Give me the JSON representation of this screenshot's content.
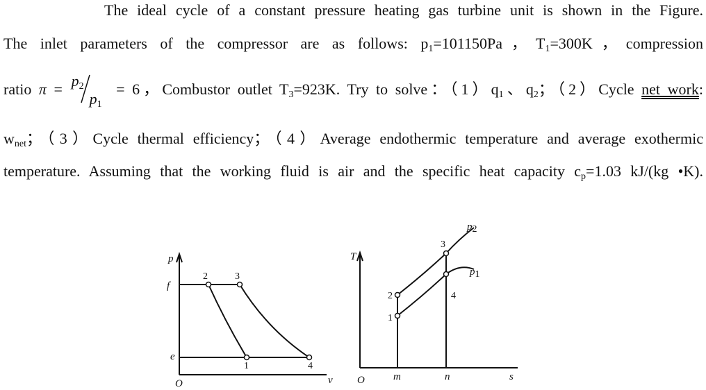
{
  "problem": {
    "lines": [
      [
        {
          "text": "The ideal cycle of a constant pressure heating gas turbine unit is shown in the Figure."
        }
      ],
      [
        {
          "text": "The inlet parameters of the compressor are as follows: p"
        },
        {
          "sub": "1"
        },
        {
          "text": "=101150Pa，T"
        },
        {
          "sub": "1"
        },
        {
          "text": "=300K，compression"
        }
      ],
      [
        {
          "text": "ratio "
        },
        {
          "italic": "π"
        },
        {
          "text": " = "
        },
        {
          "frac": {
            "num": [
              {
                "italic": "p"
              },
              {
                "sub": "2"
              }
            ],
            "den": [
              {
                "italic": "p"
              },
              {
                "sub": "1"
              }
            ]
          }
        },
        {
          "text": " = 6，Combustor outlet T"
        },
        {
          "sub": "3"
        },
        {
          "text": "=923K. Try to solve：（1）q"
        },
        {
          "sub": "1"
        },
        {
          "text": "、q"
        },
        {
          "sub": "2"
        },
        {
          "text": "；（2）Cycle "
        },
        {
          "u": "net work"
        },
        {
          "text": ":"
        }
      ],
      [
        {
          "text": "w"
        },
        {
          "sub": "net"
        },
        {
          "text": "；（3）Cycle thermal efficiency；（4）Average endothermic temperature and average exothermic"
        }
      ],
      [
        {
          "text": "temperature. Assuming that the working fluid is air and the specific heat capacity c"
        },
        {
          "sub": "p"
        },
        {
          "text": "=1.03 kJ/(kg •K)."
        }
      ]
    ]
  },
  "figure": {
    "pv": {
      "axis_y": "p",
      "axis_x": "v",
      "origin": "O",
      "levels": [
        "f",
        "e"
      ],
      "points": [
        "1",
        "2",
        "3",
        "4"
      ]
    },
    "ts": {
      "axis_y": "T",
      "axis_x": "s",
      "origin": "O",
      "entropies": [
        "m",
        "n"
      ],
      "points": [
        "1",
        "2",
        "3",
        "4"
      ],
      "isobars": [
        {
          "name": "p",
          "sub": "2"
        },
        {
          "name": "p",
          "sub": "1"
        }
      ]
    }
  }
}
